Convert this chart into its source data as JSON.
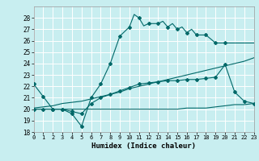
{
  "xlabel": "Humidex (Indice chaleur)",
  "background_color": "#c8eef0",
  "grid_color": "#ffffff",
  "line_color": "#006868",
  "xlim": [
    0,
    23
  ],
  "ylim": [
    18,
    29
  ],
  "xticks": [
    0,
    1,
    2,
    3,
    4,
    5,
    6,
    7,
    8,
    9,
    10,
    11,
    12,
    13,
    14,
    15,
    16,
    17,
    18,
    19,
    20,
    21,
    22,
    23
  ],
  "yticks": [
    18,
    19,
    20,
    21,
    22,
    23,
    24,
    25,
    26,
    27,
    28
  ],
  "line1_x": [
    0,
    1,
    2,
    3,
    4,
    5,
    6,
    7,
    8,
    9,
    10,
    10.5,
    11,
    11.5,
    12,
    13,
    13.5,
    14,
    14.5,
    15,
    15.5,
    16,
    16.5,
    17,
    18,
    19,
    20,
    21,
    22,
    23
  ],
  "line1_y": [
    22.2,
    21.1,
    20.0,
    20.0,
    19.6,
    18.5,
    21.0,
    22.2,
    24.0,
    26.4,
    27.2,
    28.3,
    28.0,
    27.3,
    27.5,
    27.5,
    27.7,
    27.2,
    27.5,
    27.0,
    27.2,
    26.7,
    27.0,
    26.5,
    26.5,
    25.8,
    25.8,
    25.8,
    25.8,
    25.8
  ],
  "line1_marker_x": [
    0,
    1,
    2,
    3,
    4,
    5,
    6,
    7,
    8,
    9,
    10,
    11,
    12,
    13,
    14,
    15,
    16,
    17,
    18,
    19,
    20
  ],
  "line1_marker_y": [
    22.2,
    21.1,
    20.0,
    20.0,
    19.6,
    18.5,
    21.0,
    22.2,
    24.0,
    26.4,
    27.2,
    28.0,
    27.5,
    27.5,
    27.2,
    27.0,
    26.7,
    26.5,
    26.5,
    25.8,
    25.8
  ],
  "line2_x": [
    0,
    1,
    2,
    3,
    4,
    5,
    6,
    7,
    8,
    9,
    10,
    11,
    12,
    13,
    14,
    15,
    16,
    17,
    18,
    19,
    20,
    21,
    22,
    23
  ],
  "line2_y": [
    20.1,
    20.2,
    20.3,
    20.5,
    20.6,
    20.7,
    20.9,
    21.1,
    21.3,
    21.5,
    21.8,
    22.0,
    22.2,
    22.4,
    22.6,
    22.8,
    23.0,
    23.2,
    23.4,
    23.6,
    23.8,
    24.0,
    24.2,
    24.5
  ],
  "line3_x": [
    0,
    2,
    3,
    4,
    5,
    6,
    7,
    8,
    9,
    10,
    11,
    12,
    13,
    14,
    15,
    16,
    17,
    18,
    19,
    20,
    21,
    22,
    23
  ],
  "line3_y": [
    20.0,
    20.0,
    20.0,
    20.0,
    20.0,
    20.0,
    20.0,
    20.0,
    20.0,
    20.0,
    20.0,
    20.0,
    20.0,
    20.0,
    20.0,
    20.1,
    20.1,
    20.1,
    20.2,
    20.3,
    20.4,
    20.4,
    20.5
  ],
  "line4_x": [
    0,
    1,
    2,
    3,
    4,
    5,
    6,
    7,
    8,
    9,
    10,
    11,
    12,
    13,
    14,
    15,
    16,
    17,
    18,
    19,
    20,
    21,
    22,
    23
  ],
  "line4_y": [
    20.0,
    20.0,
    20.0,
    20.0,
    19.8,
    19.6,
    20.5,
    21.0,
    21.3,
    21.6,
    21.9,
    22.2,
    22.3,
    22.4,
    22.5,
    22.5,
    22.6,
    22.6,
    22.7,
    22.8,
    23.9,
    21.5,
    20.7,
    20.5
  ],
  "line4_marker_x": [
    0,
    1,
    2,
    3,
    4,
    5,
    6,
    7,
    8,
    9,
    10,
    11,
    12,
    13,
    14,
    15,
    16,
    17,
    18,
    19,
    20,
    21,
    22,
    23
  ],
  "line4_marker_y": [
    20.0,
    20.0,
    20.0,
    20.0,
    19.8,
    19.6,
    20.5,
    21.0,
    21.3,
    21.6,
    21.9,
    22.2,
    22.3,
    22.4,
    22.5,
    22.5,
    22.6,
    22.6,
    22.7,
    22.8,
    23.9,
    21.5,
    20.7,
    20.5
  ]
}
